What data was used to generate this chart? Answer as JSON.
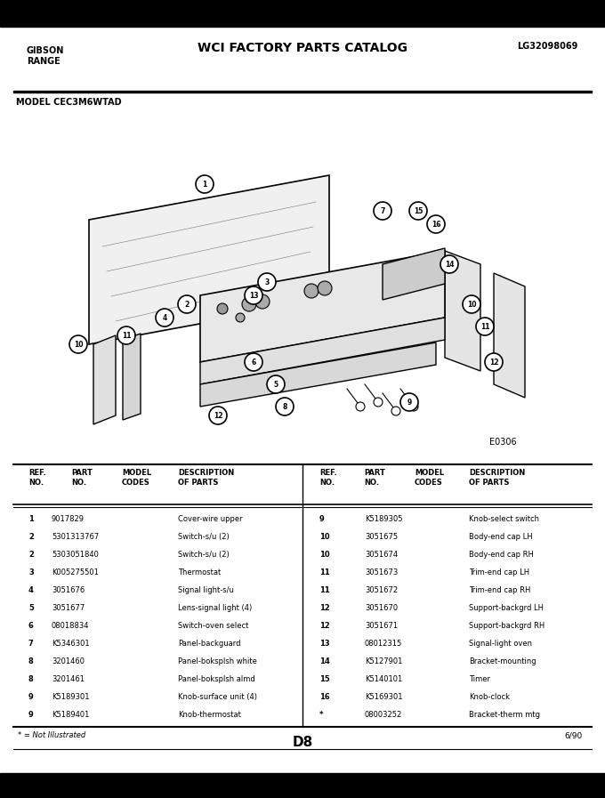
{
  "title_left": "GIBSON\nRANGE",
  "title_center": "WCI FACTORY PARTS CATALOG",
  "title_right": "LG32098069",
  "model": "MODEL CEC3M6WTAD",
  "diagram_code": "E0306",
  "page_id": "D8",
  "date": "6/90",
  "footnote": "* = Not Illustrated",
  "bg_color": "#ffffff",
  "header_bar_color": "#000000",
  "table_header": [
    "REF.\nNO.",
    "PART\nNO.",
    "MODEL\nCODES",
    "DESCRIPTION\nOF PARTS"
  ],
  "parts_left": [
    [
      "1",
      "9017829",
      "",
      "Cover-wire upper"
    ],
    [
      "2",
      "5301313767",
      "",
      "Switch-s/u (2)"
    ],
    [
      "2",
      "5303051840",
      "",
      "Switch-s/u (2)"
    ],
    [
      "3",
      "K005275501",
      "",
      "Thermostat"
    ],
    [
      "4",
      "3051676",
      "",
      "Signal light-s/u"
    ],
    [
      "5",
      "3051677",
      "",
      "Lens-signal light (4)"
    ],
    [
      "6",
      "08018834",
      "",
      "Switch-oven select"
    ],
    [
      "7",
      "K5346301",
      "",
      "Panel-backguard"
    ],
    [
      "8",
      "3201460",
      "",
      "Panel-boksplsh white"
    ],
    [
      "8",
      "3201461",
      "",
      "Panel-boksplsh almd"
    ],
    [
      "9",
      "K5189301",
      "",
      "Knob-surface unit (4)"
    ],
    [
      "9",
      "K5189401",
      "",
      "Knob-thermostat"
    ]
  ],
  "parts_right": [
    [
      "9",
      "K5189305",
      "",
      "Knob-select switch"
    ],
    [
      "10",
      "3051675",
      "",
      "Body-end cap LH"
    ],
    [
      "10",
      "3051674",
      "",
      "Body-end cap RH"
    ],
    [
      "11",
      "3051673",
      "",
      "Trim-end cap LH"
    ],
    [
      "11",
      "3051672",
      "",
      "Trim-end cap RH"
    ],
    [
      "12",
      "3051670",
      "",
      "Support-backgrd LH"
    ],
    [
      "12",
      "3051671",
      "",
      "Support-backgrd RH"
    ],
    [
      "13",
      "08012315",
      "",
      "Signal-light oven"
    ],
    [
      "14",
      "K5127901",
      "",
      "Bracket-mounting"
    ],
    [
      "15",
      "K5140101",
      "",
      "Timer"
    ],
    [
      "16",
      "K5169301",
      "",
      "Knob-clock"
    ],
    [
      "*",
      "08003252",
      "",
      "Bracket-therm mtg"
    ]
  ]
}
